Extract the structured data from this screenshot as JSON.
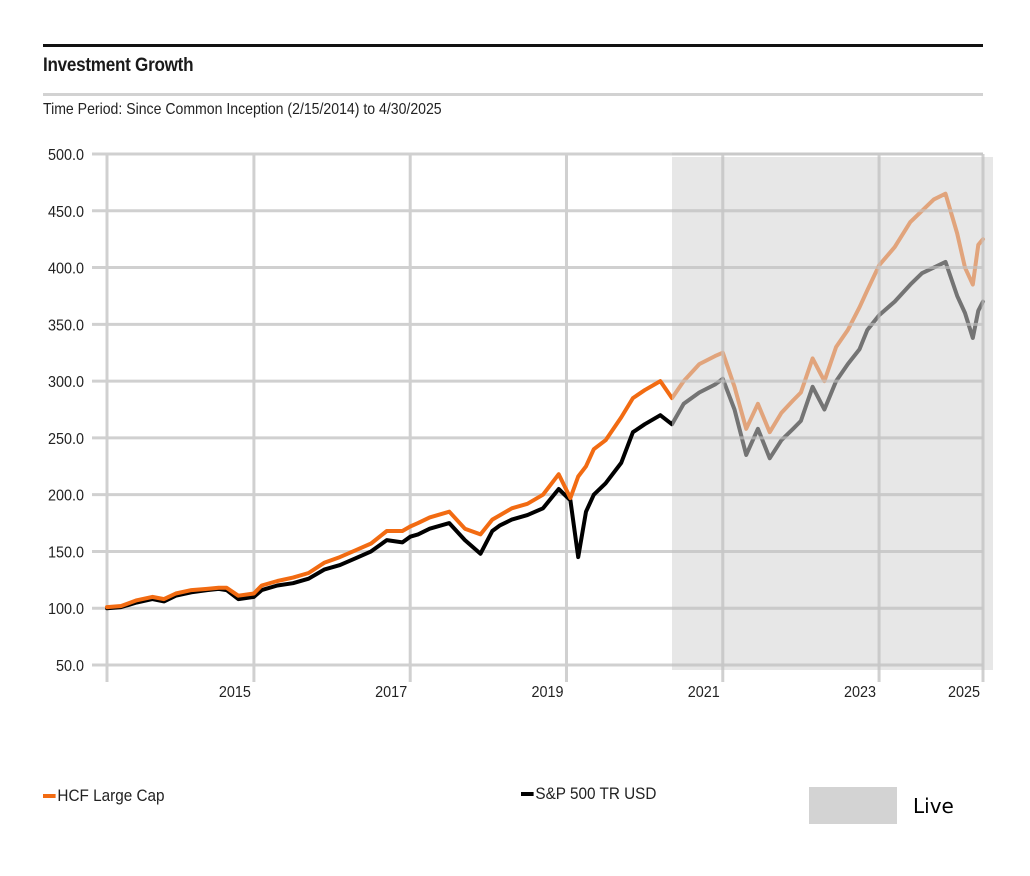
{
  "header": {
    "title": "Investment Growth",
    "subtitle": "Time Period: Since Common Inception (2/15/2014) to 4/30/2025"
  },
  "legend": {
    "items": [
      {
        "label": "HCF Large Cap",
        "color": "#f26b12"
      },
      {
        "label": "S&P 500 TR USD",
        "color": "#000000"
      }
    ],
    "live": {
      "label": "Live",
      "color": "#d3d3d3"
    }
  },
  "chart_data": {
    "type": "line",
    "title": "Investment Growth",
    "subtitle": "Time Period: Since Common Inception (2/15/2014) to 4/30/2025",
    "xlabel": "",
    "ylabel": "",
    "x_range": [
      2014.12,
      2025.33
    ],
    "ylim": [
      50,
      500
    ],
    "y_ticks": [
      500,
      450,
      400,
      350,
      300,
      250,
      200,
      150,
      100,
      50
    ],
    "y_tick_labels": [
      "500.0",
      "450.0",
      "400.0",
      "350.0",
      "300.0",
      "250.0",
      "200.0",
      "150.0",
      "100.0",
      "50.0"
    ],
    "x_ticks": [
      2016.0,
      2018.0,
      2020.0,
      2022.0,
      2024.0,
      2025.33
    ],
    "x_tick_labels": [
      "2015",
      "2017",
      "2019",
      "2021",
      "2023",
      "2025"
    ],
    "grid": true,
    "legend_position": "bottom",
    "shaded_region": {
      "label": "Live",
      "x_start": 2021.35,
      "x_end": 2025.33,
      "color": "#d3d3d3"
    },
    "x": [
      2014.12,
      2014.3,
      2014.5,
      2014.7,
      2014.85,
      2015.0,
      2015.2,
      2015.4,
      2015.55,
      2015.65,
      2015.8,
      2016.0,
      2016.1,
      2016.3,
      2016.5,
      2016.7,
      2016.9,
      2017.1,
      2017.3,
      2017.5,
      2017.7,
      2017.9,
      2018.0,
      2018.1,
      2018.25,
      2018.5,
      2018.7,
      2018.9,
      2019.05,
      2019.15,
      2019.3,
      2019.5,
      2019.7,
      2019.9,
      2020.05,
      2020.15,
      2020.25,
      2020.35,
      2020.5,
      2020.7,
      2020.85,
      2021.0,
      2021.2,
      2021.35,
      2021.5,
      2021.7,
      2021.9,
      2022.0,
      2022.15,
      2022.3,
      2022.45,
      2022.6,
      2022.75,
      2022.9,
      2023.0,
      2023.15,
      2023.3,
      2023.45,
      2023.6,
      2023.75,
      2023.85,
      2024.0,
      2024.2,
      2024.4,
      2024.55,
      2024.7,
      2024.85,
      2025.0,
      2025.1,
      2025.2,
      2025.27,
      2025.33
    ],
    "series": [
      {
        "name": "HCF Large Cap",
        "color": "#f26b12",
        "live_color": "#d98b5f",
        "values": [
          101,
          102,
          107,
          110,
          108,
          113,
          116,
          117,
          118,
          118,
          111,
          113,
          120,
          124,
          127,
          131,
          140,
          145,
          151,
          157,
          168,
          168,
          172,
          175,
          180,
          185,
          170,
          165,
          178,
          182,
          188,
          192,
          200,
          218,
          197,
          216,
          225,
          240,
          248,
          268,
          285,
          292,
          300,
          285,
          300,
          315,
          322,
          325,
          295,
          258,
          280,
          255,
          272,
          283,
          290,
          320,
          300,
          330,
          345,
          365,
          380,
          402,
          418,
          440,
          450,
          460,
          465,
          430,
          400,
          385,
          420,
          425
        ]
      },
      {
        "name": "S&P 500 TR USD",
        "color": "#000000",
        "live_color": "#5a5a5a",
        "values": [
          100,
          101,
          105,
          108,
          106,
          111,
          114,
          116,
          117,
          116,
          108,
          110,
          116,
          120,
          122,
          126,
          134,
          138,
          144,
          150,
          160,
          158,
          163,
          165,
          170,
          175,
          160,
          148,
          168,
          173,
          178,
          182,
          188,
          205,
          195,
          145,
          185,
          200,
          210,
          228,
          255,
          262,
          270,
          262,
          280,
          290,
          297,
          302,
          275,
          235,
          258,
          232,
          248,
          258,
          265,
          295,
          275,
          300,
          315,
          328,
          345,
          358,
          370,
          385,
          395,
          400,
          405,
          375,
          360,
          338,
          362,
          370
        ]
      }
    ]
  }
}
